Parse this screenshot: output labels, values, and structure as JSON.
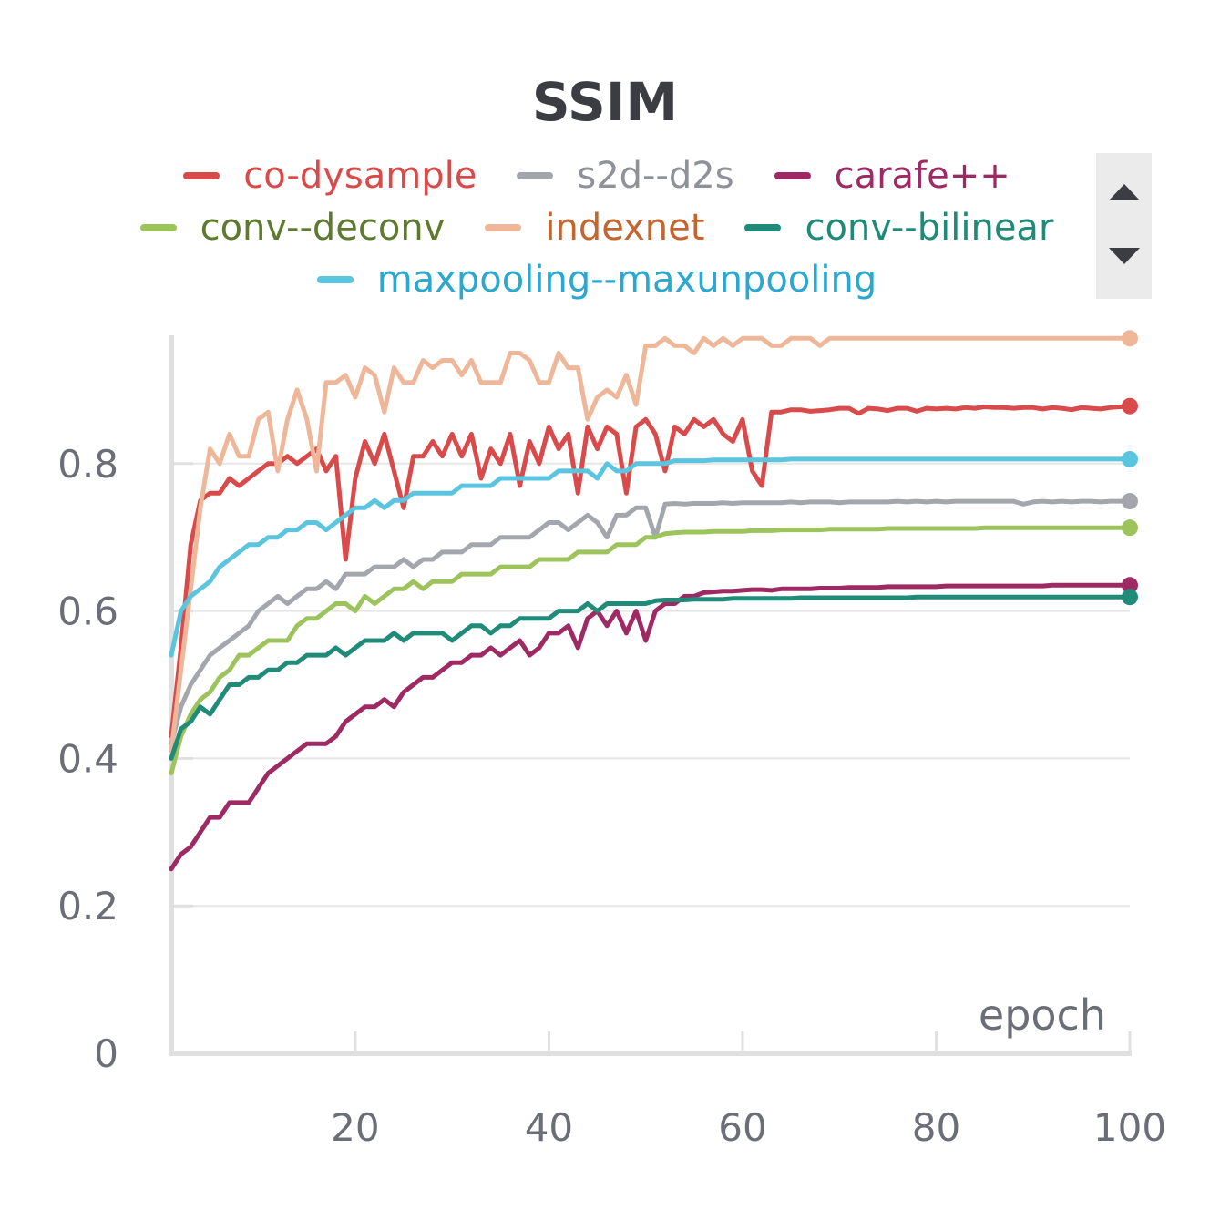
{
  "chart_data": {
    "type": "line",
    "title": "SSIM",
    "xlabel": "epoch",
    "ylabel": "",
    "xlim": [
      1,
      100
    ],
    "ylim": [
      0,
      1
    ],
    "x_ticks": [
      20,
      40,
      60,
      80,
      100
    ],
    "y_ticks": [
      0,
      0.2,
      0.4,
      0.6,
      0.8
    ],
    "x_tick_labels": [
      "20",
      "40",
      "60",
      "80",
      "100"
    ],
    "y_tick_labels": [
      "0",
      "0.2",
      "0.4",
      "0.6",
      "0.8"
    ],
    "grid": "horizontal",
    "legend_position": "top",
    "series": [
      {
        "name": "co-dysample",
        "color": "#d94a4a",
        "label_color": "#d94a4a",
        "values": [
          0.43,
          0.55,
          0.69,
          0.75,
          0.76,
          0.76,
          0.78,
          0.77,
          0.78,
          0.79,
          0.8,
          0.8,
          0.81,
          0.8,
          0.81,
          0.82,
          0.79,
          0.81,
          0.67,
          0.78,
          0.83,
          0.8,
          0.84,
          0.79,
          0.74,
          0.81,
          0.81,
          0.83,
          0.81,
          0.84,
          0.81,
          0.84,
          0.78,
          0.82,
          0.8,
          0.84,
          0.77,
          0.83,
          0.8,
          0.85,
          0.82,
          0.84,
          0.76,
          0.85,
          0.82,
          0.85,
          0.84,
          0.76,
          0.85,
          0.86,
          0.84,
          0.79,
          0.85,
          0.84,
          0.86,
          0.85,
          0.86,
          0.84,
          0.83,
          0.86,
          0.79,
          0.77,
          0.87,
          0.87,
          0.873,
          0.873,
          0.871,
          0.872,
          0.873,
          0.875,
          0.875,
          0.868,
          0.875,
          0.874,
          0.872,
          0.875,
          0.875,
          0.871,
          0.875,
          0.874,
          0.875,
          0.874,
          0.876,
          0.875,
          0.877,
          0.876,
          0.876,
          0.875,
          0.876,
          0.876,
          0.874,
          0.876,
          0.875,
          0.873,
          0.876,
          0.875,
          0.874,
          0.876,
          0.877,
          0.878
        ]
      },
      {
        "name": "s2d--d2s",
        "color": "#a3a7ad",
        "label_color": "#8e9198",
        "values": [
          0.42,
          0.47,
          0.5,
          0.52,
          0.54,
          0.55,
          0.56,
          0.57,
          0.58,
          0.6,
          0.61,
          0.62,
          0.61,
          0.62,
          0.63,
          0.63,
          0.64,
          0.63,
          0.65,
          0.65,
          0.65,
          0.66,
          0.66,
          0.66,
          0.67,
          0.66,
          0.67,
          0.67,
          0.68,
          0.68,
          0.68,
          0.69,
          0.69,
          0.69,
          0.7,
          0.7,
          0.7,
          0.7,
          0.71,
          0.72,
          0.72,
          0.71,
          0.72,
          0.73,
          0.72,
          0.7,
          0.73,
          0.73,
          0.74,
          0.74,
          0.7,
          0.745,
          0.746,
          0.745,
          0.746,
          0.746,
          0.746,
          0.747,
          0.746,
          0.747,
          0.747,
          0.747,
          0.747,
          0.747,
          0.748,
          0.747,
          0.748,
          0.748,
          0.748,
          0.747,
          0.748,
          0.748,
          0.748,
          0.748,
          0.748,
          0.749,
          0.748,
          0.749,
          0.748,
          0.749,
          0.748,
          0.749,
          0.749,
          0.749,
          0.749,
          0.749,
          0.749,
          0.749,
          0.745,
          0.748,
          0.749,
          0.748,
          0.749,
          0.748,
          0.749,
          0.749,
          0.748,
          0.749,
          0.749,
          0.749
        ]
      },
      {
        "name": "carafe++",
        "color": "#9e2a64",
        "label_color": "#9e2a64",
        "values": [
          0.25,
          0.27,
          0.28,
          0.3,
          0.32,
          0.32,
          0.34,
          0.34,
          0.34,
          0.36,
          0.38,
          0.39,
          0.4,
          0.41,
          0.42,
          0.42,
          0.42,
          0.43,
          0.45,
          0.46,
          0.47,
          0.47,
          0.48,
          0.47,
          0.49,
          0.5,
          0.51,
          0.51,
          0.52,
          0.53,
          0.53,
          0.54,
          0.54,
          0.55,
          0.54,
          0.55,
          0.56,
          0.54,
          0.55,
          0.57,
          0.57,
          0.58,
          0.55,
          0.59,
          0.6,
          0.58,
          0.6,
          0.57,
          0.6,
          0.56,
          0.6,
          0.61,
          0.61,
          0.62,
          0.62,
          0.625,
          0.626,
          0.627,
          0.627,
          0.628,
          0.629,
          0.629,
          0.628,
          0.63,
          0.63,
          0.63,
          0.63,
          0.631,
          0.631,
          0.631,
          0.632,
          0.632,
          0.632,
          0.632,
          0.633,
          0.633,
          0.633,
          0.633,
          0.633,
          0.633,
          0.634,
          0.634,
          0.634,
          0.634,
          0.634,
          0.634,
          0.634,
          0.634,
          0.634,
          0.634,
          0.634,
          0.635,
          0.635,
          0.635,
          0.635,
          0.635,
          0.635,
          0.635,
          0.635,
          0.635
        ]
      },
      {
        "name": "conv--deconv",
        "color": "#9dc35c",
        "label_color": "#5e7a2e",
        "values": [
          0.38,
          0.43,
          0.46,
          0.48,
          0.49,
          0.51,
          0.52,
          0.54,
          0.54,
          0.55,
          0.56,
          0.56,
          0.56,
          0.58,
          0.59,
          0.59,
          0.6,
          0.61,
          0.61,
          0.6,
          0.62,
          0.61,
          0.62,
          0.63,
          0.63,
          0.64,
          0.63,
          0.64,
          0.64,
          0.64,
          0.65,
          0.65,
          0.65,
          0.65,
          0.66,
          0.66,
          0.66,
          0.66,
          0.67,
          0.67,
          0.67,
          0.67,
          0.68,
          0.68,
          0.68,
          0.68,
          0.69,
          0.69,
          0.69,
          0.7,
          0.7,
          0.705,
          0.706,
          0.707,
          0.707,
          0.707,
          0.708,
          0.708,
          0.708,
          0.708,
          0.709,
          0.709,
          0.709,
          0.71,
          0.71,
          0.71,
          0.71,
          0.71,
          0.711,
          0.711,
          0.711,
          0.711,
          0.711,
          0.711,
          0.712,
          0.712,
          0.712,
          0.712,
          0.712,
          0.712,
          0.712,
          0.712,
          0.712,
          0.712,
          0.713,
          0.713,
          0.713,
          0.713,
          0.713,
          0.713,
          0.713,
          0.713,
          0.713,
          0.713,
          0.713,
          0.713,
          0.713,
          0.713,
          0.713,
          0.713
        ]
      },
      {
        "name": "indexnet",
        "color": "#efb79a",
        "label_color": "#c4652f",
        "values": [
          0.41,
          0.52,
          0.63,
          0.74,
          0.82,
          0.8,
          0.84,
          0.81,
          0.81,
          0.86,
          0.87,
          0.79,
          0.86,
          0.9,
          0.86,
          0.79,
          0.91,
          0.91,
          0.92,
          0.89,
          0.93,
          0.92,
          0.87,
          0.93,
          0.91,
          0.91,
          0.94,
          0.93,
          0.94,
          0.94,
          0.92,
          0.94,
          0.91,
          0.91,
          0.91,
          0.95,
          0.95,
          0.94,
          0.91,
          0.91,
          0.95,
          0.93,
          0.93,
          0.86,
          0.89,
          0.9,
          0.89,
          0.92,
          0.88,
          0.96,
          0.96,
          0.97,
          0.96,
          0.96,
          0.95,
          0.97,
          0.96,
          0.97,
          0.96,
          0.97,
          0.97,
          0.97,
          0.96,
          0.96,
          0.97,
          0.97,
          0.97,
          0.96,
          0.97,
          0.97,
          0.97,
          0.97,
          0.97,
          0.97,
          0.97,
          0.97,
          0.97,
          0.97,
          0.97,
          0.97,
          0.97,
          0.97,
          0.97,
          0.97,
          0.97,
          0.97,
          0.97,
          0.97,
          0.97,
          0.97,
          0.97,
          0.97,
          0.97,
          0.97,
          0.97,
          0.97,
          0.97,
          0.97,
          0.97,
          0.97
        ]
      },
      {
        "name": "conv--bilinear",
        "color": "#218b7a",
        "label_color": "#1f8a78",
        "values": [
          0.4,
          0.44,
          0.45,
          0.47,
          0.46,
          0.48,
          0.5,
          0.5,
          0.51,
          0.51,
          0.52,
          0.52,
          0.53,
          0.53,
          0.54,
          0.54,
          0.54,
          0.55,
          0.54,
          0.55,
          0.56,
          0.56,
          0.56,
          0.57,
          0.56,
          0.57,
          0.57,
          0.57,
          0.57,
          0.56,
          0.57,
          0.58,
          0.58,
          0.57,
          0.58,
          0.58,
          0.59,
          0.59,
          0.59,
          0.59,
          0.6,
          0.6,
          0.6,
          0.61,
          0.6,
          0.61,
          0.61,
          0.61,
          0.61,
          0.61,
          0.614,
          0.615,
          0.615,
          0.615,
          0.616,
          0.616,
          0.616,
          0.616,
          0.617,
          0.617,
          0.617,
          0.617,
          0.617,
          0.617,
          0.617,
          0.618,
          0.618,
          0.618,
          0.618,
          0.618,
          0.618,
          0.618,
          0.618,
          0.618,
          0.618,
          0.618,
          0.618,
          0.619,
          0.619,
          0.619,
          0.619,
          0.619,
          0.619,
          0.619,
          0.619,
          0.619,
          0.619,
          0.619,
          0.619,
          0.619,
          0.619,
          0.619,
          0.619,
          0.619,
          0.619,
          0.619,
          0.619,
          0.619,
          0.619,
          0.619
        ]
      },
      {
        "name": "maxpooling--maxunpooling",
        "color": "#5bc4df",
        "label_color": "#2aa8d0",
        "values": [
          0.54,
          0.6,
          0.62,
          0.63,
          0.64,
          0.66,
          0.67,
          0.68,
          0.69,
          0.69,
          0.7,
          0.7,
          0.71,
          0.71,
          0.72,
          0.72,
          0.71,
          0.72,
          0.73,
          0.74,
          0.74,
          0.75,
          0.74,
          0.75,
          0.75,
          0.76,
          0.76,
          0.76,
          0.76,
          0.76,
          0.77,
          0.77,
          0.77,
          0.77,
          0.78,
          0.78,
          0.78,
          0.78,
          0.78,
          0.78,
          0.79,
          0.79,
          0.79,
          0.79,
          0.78,
          0.8,
          0.79,
          0.79,
          0.8,
          0.8,
          0.8,
          0.8,
          0.804,
          0.804,
          0.804,
          0.804,
          0.805,
          0.805,
          0.805,
          0.805,
          0.805,
          0.805,
          0.805,
          0.805,
          0.806,
          0.806,
          0.806,
          0.806,
          0.806,
          0.806,
          0.806,
          0.806,
          0.806,
          0.806,
          0.806,
          0.806,
          0.806,
          0.806,
          0.806,
          0.806,
          0.806,
          0.806,
          0.806,
          0.806,
          0.806,
          0.806,
          0.806,
          0.806,
          0.806,
          0.806,
          0.806,
          0.806,
          0.806,
          0.806,
          0.806,
          0.806,
          0.806,
          0.806,
          0.806,
          0.806
        ]
      }
    ]
  },
  "legend": {
    "rows": [
      [
        0,
        1,
        2
      ],
      [
        3,
        4,
        5
      ],
      [
        6
      ]
    ],
    "scroll_up_icon": "triangle-up-icon",
    "scroll_down_icon": "triangle-down-icon"
  }
}
